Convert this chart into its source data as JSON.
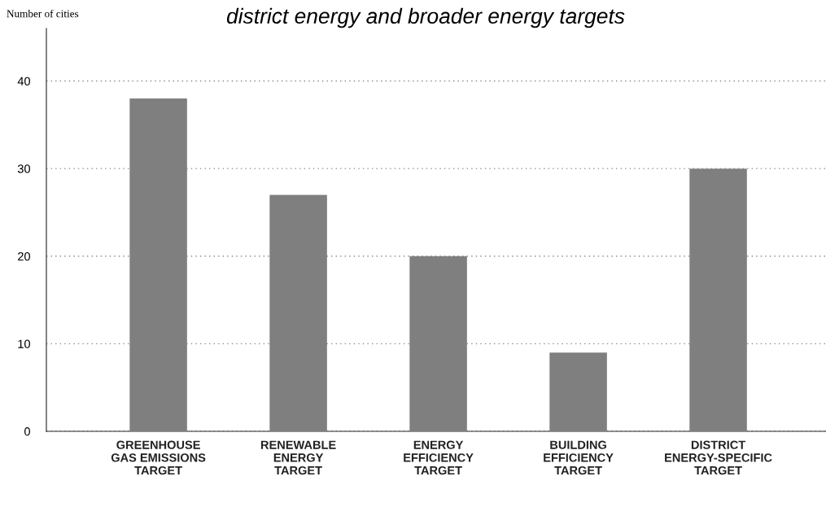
{
  "chart_data": {
    "type": "bar",
    "title": "district energy and broader energy targets",
    "ylabel": "Number of cities",
    "categories": [
      "GREENHOUSE\nGAS EMISSIONS\nTARGET",
      "RENEWABLE\nENERGY\nTARGET",
      "ENERGY\nEFFICIENCY\nTARGET",
      "BUILDING\nEFFICIENCY\nTARGET",
      "DISTRICT\nENERGY-SPECIFIC\nTARGET"
    ],
    "values": [
      38,
      27,
      20,
      9,
      30
    ],
    "color": "#7f7f7f",
    "ylim": [
      0,
      46
    ],
    "yticks": [
      0,
      10,
      20,
      30,
      40
    ],
    "grid": "y"
  }
}
